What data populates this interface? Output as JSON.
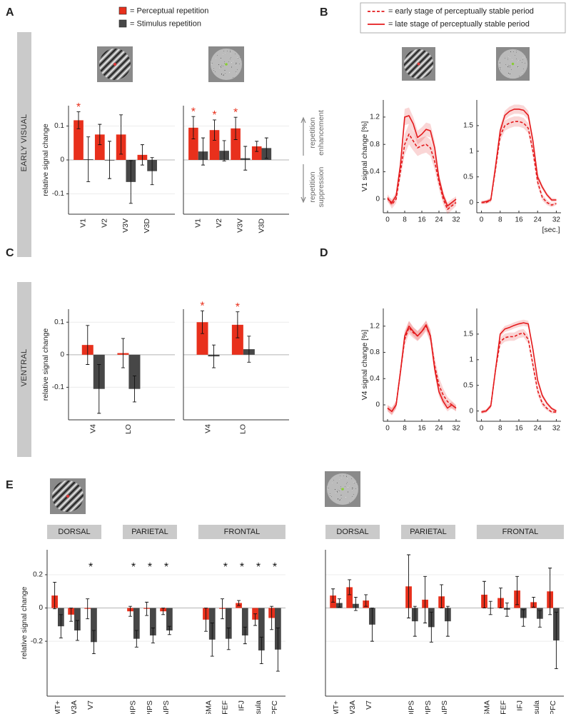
{
  "panels": [
    "A",
    "B",
    "C",
    "D",
    "E"
  ],
  "side_labels": [
    "EARLY VISUAL",
    "VENTRAL"
  ],
  "chart_data": [
    {
      "type": "bar",
      "ylabel": "relative signal change",
      "categories": [
        "V1",
        "V2",
        "V3V",
        "V3D"
      ],
      "ylim": [
        -0.16,
        0.16
      ],
      "yticks": [
        -0.1,
        0,
        0.1
      ],
      "grid": true,
      "series": [
        {
          "name": "= Perceptual repetition",
          "color": "#e8301c",
          "values": [
            0.117,
            0.075,
            0.075,
            0.015
          ],
          "errors": [
            0.025,
            0.03,
            0.058,
            0.03
          ]
        },
        {
          "name": "= Stimulus repetition",
          "color": "#474747",
          "values": [
            0.002,
            0.0,
            -0.065,
            -0.033
          ],
          "errors": [
            0.066,
            0.055,
            0.063,
            0.04
          ]
        }
      ],
      "significance": [
        "*",
        null,
        null,
        null
      ],
      "significance_color": "#e8301c"
    },
    {
      "type": "bar",
      "categories": [
        "V1",
        "V2",
        "V3V",
        "V3D"
      ],
      "ylim": [
        -0.16,
        0.16
      ],
      "yticks": [
        -0.1,
        0,
        0.1
      ],
      "grid": true,
      "ytick_labels": false,
      "series": [
        {
          "color": "#e8301c",
          "values": [
            0.095,
            0.088,
            0.093,
            0.04
          ],
          "errors": [
            0.033,
            0.03,
            0.033,
            0.015
          ]
        },
        {
          "color": "#474747",
          "values": [
            0.025,
            0.027,
            0.005,
            0.035
          ],
          "errors": [
            0.04,
            0.03,
            0.035,
            0.03
          ]
        }
      ],
      "significance": [
        "*",
        "*",
        "*",
        null
      ],
      "significance_color": "#e8301c",
      "annotations": [
        [
          "repetition",
          "enhancement"
        ],
        [
          "repetition",
          "suppression"
        ]
      ]
    },
    {
      "type": "line",
      "ylabel": "V1 signal change [%]",
      "x": [
        0,
        2,
        4,
        6,
        8,
        10,
        12,
        14,
        16,
        18,
        20,
        22,
        24,
        26,
        28,
        30,
        32
      ],
      "xlim": [
        -2,
        34
      ],
      "xticks": [
        0,
        8,
        16,
        24,
        32
      ],
      "ylim": [
        -0.2,
        1.45
      ],
      "yticks": [
        0,
        0.4,
        0.8,
        1.2
      ],
      "series": [
        {
          "name": "= early stage of perceptually stable period",
          "color": "#e41a1c",
          "line_style": "dashed",
          "values": [
            0.02,
            -0.08,
            0.0,
            0.4,
            0.8,
            0.95,
            0.85,
            0.75,
            0.78,
            0.8,
            0.75,
            0.55,
            0.25,
            0.0,
            -0.15,
            -0.1,
            -0.05
          ],
          "errors": [
            0.05,
            0.06,
            0.06,
            0.1,
            0.15,
            0.15,
            0.14,
            0.12,
            0.12,
            0.12,
            0.12,
            0.12,
            0.1,
            0.08,
            0.07,
            0.06,
            0.05
          ]
        },
        {
          "name": "= late stage of perceptually stable period",
          "color": "#e41a1c",
          "line_style": "solid",
          "values": [
            0.0,
            -0.05,
            0.05,
            0.5,
            1.2,
            1.22,
            1.1,
            0.9,
            0.95,
            1.02,
            1.0,
            0.75,
            0.3,
            0.05,
            -0.1,
            -0.05,
            0.0
          ],
          "errors": [
            0.04,
            0.05,
            0.05,
            0.08,
            0.12,
            0.12,
            0.1,
            0.1,
            0.1,
            0.1,
            0.1,
            0.1,
            0.08,
            0.06,
            0.05,
            0.05,
            0.04
          ]
        }
      ]
    },
    {
      "type": "line",
      "xlabel": "[sec.]",
      "x": [
        0,
        2,
        4,
        6,
        8,
        10,
        12,
        14,
        16,
        18,
        20,
        22,
        24,
        26,
        28,
        30,
        32
      ],
      "xlim": [
        -2,
        34
      ],
      "xticks": [
        0,
        8,
        16,
        24,
        32
      ],
      "ylim": [
        -0.2,
        2.0
      ],
      "yticks": [
        0,
        0.5,
        1,
        1.5
      ],
      "series": [
        {
          "color": "#e41a1c",
          "line_style": "dashed",
          "values": [
            0.0,
            0.0,
            0.05,
            0.65,
            1.3,
            1.5,
            1.55,
            1.58,
            1.58,
            1.55,
            1.45,
            1.0,
            0.4,
            0.1,
            0.0,
            -0.05,
            -0.02
          ],
          "errors": [
            0.03,
            0.03,
            0.04,
            0.08,
            0.1,
            0.1,
            0.1,
            0.1,
            0.1,
            0.1,
            0.1,
            0.1,
            0.08,
            0.06,
            0.05,
            0.04,
            0.03
          ]
        },
        {
          "color": "#e41a1c",
          "line_style": "solid",
          "values": [
            0.0,
            0.02,
            0.05,
            0.7,
            1.4,
            1.7,
            1.78,
            1.82,
            1.82,
            1.8,
            1.7,
            1.2,
            0.5,
            0.3,
            0.15,
            0.05,
            0.05
          ],
          "errors": [
            0.03,
            0.03,
            0.04,
            0.07,
            0.09,
            0.09,
            0.09,
            0.09,
            0.09,
            0.09,
            0.09,
            0.09,
            0.07,
            0.05,
            0.04,
            0.04,
            0.03
          ]
        }
      ]
    },
    {
      "type": "bar",
      "ylabel": "relative signal change",
      "categories": [
        "V4",
        "LO"
      ],
      "ylim": [
        -0.2,
        0.14
      ],
      "yticks": [
        -0.1,
        0,
        0.1
      ],
      "grid": true,
      "series": [
        {
          "color": "#e8301c",
          "values": [
            0.03,
            0.005
          ],
          "errors": [
            0.06,
            0.045
          ]
        },
        {
          "color": "#474747",
          "values": [
            -0.105,
            -0.105
          ],
          "errors": [
            0.075,
            0.04
          ]
        }
      ]
    },
    {
      "type": "bar",
      "categories": [
        "V4",
        "LO"
      ],
      "ylim": [
        -0.2,
        0.14
      ],
      "yticks": [
        -0.1,
        0,
        0.1
      ],
      "grid": true,
      "ytick_labels": false,
      "series": [
        {
          "color": "#e8301c",
          "values": [
            0.1,
            0.092
          ],
          "errors": [
            0.035,
            0.04
          ]
        },
        {
          "color": "#474747",
          "values": [
            -0.005,
            0.017
          ],
          "errors": [
            0.035,
            0.04
          ]
        }
      ],
      "significance": [
        "*",
        "*"
      ],
      "significance_color": "#e8301c"
    },
    {
      "type": "line",
      "ylabel": "V4 signal change [%]",
      "x": [
        0,
        2,
        4,
        6,
        8,
        10,
        12,
        14,
        16,
        18,
        20,
        22,
        24,
        26,
        28,
        30,
        32
      ],
      "xlim": [
        -2,
        34
      ],
      "xticks": [
        0,
        8,
        16,
        24,
        32
      ],
      "ylim": [
        -0.25,
        1.47
      ],
      "yticks": [
        0,
        0.4,
        0.8,
        1.2
      ],
      "series": [
        {
          "color": "#e41a1c",
          "line_style": "dashed",
          "values": [
            -0.05,
            -0.1,
            0.0,
            0.5,
            1.0,
            1.18,
            1.1,
            1.05,
            1.12,
            1.2,
            1.05,
            0.6,
            0.3,
            0.15,
            0.05,
            0.0,
            -0.05
          ],
          "errors": [
            0.05,
            0.06,
            0.06,
            0.08,
            0.1,
            0.1,
            0.08,
            0.08,
            0.08,
            0.08,
            0.1,
            0.12,
            0.12,
            0.1,
            0.07,
            0.06,
            0.05
          ]
        },
        {
          "color": "#e41a1c",
          "line_style": "solid",
          "values": [
            -0.05,
            -0.1,
            0.0,
            0.5,
            1.05,
            1.2,
            1.12,
            1.05,
            1.12,
            1.22,
            1.05,
            0.55,
            0.2,
            0.05,
            -0.05,
            0.0,
            -0.05
          ],
          "errors": [
            0.04,
            0.05,
            0.05,
            0.07,
            0.08,
            0.08,
            0.07,
            0.07,
            0.07,
            0.07,
            0.08,
            0.08,
            0.07,
            0.06,
            0.05,
            0.05,
            0.04
          ]
        }
      ]
    },
    {
      "type": "line",
      "x": [
        0,
        2,
        4,
        6,
        8,
        10,
        12,
        14,
        16,
        18,
        20,
        22,
        24,
        26,
        28,
        30,
        32
      ],
      "xlim": [
        -2,
        34
      ],
      "xticks": [
        0,
        8,
        16,
        24,
        32
      ],
      "ylim": [
        -0.2,
        2.0
      ],
      "yticks": [
        0,
        0.5,
        1,
        1.5
      ],
      "series": [
        {
          "color": "#e41a1c",
          "line_style": "dashed",
          "values": [
            -0.02,
            0.0,
            0.1,
            0.8,
            1.35,
            1.43,
            1.45,
            1.45,
            1.5,
            1.52,
            1.4,
            0.9,
            0.4,
            0.15,
            0.05,
            -0.02,
            -0.02
          ],
          "errors": [
            0.03,
            0.03,
            0.04,
            0.07,
            0.08,
            0.08,
            0.08,
            0.08,
            0.08,
            0.08,
            0.09,
            0.1,
            0.09,
            0.06,
            0.04,
            0.03,
            0.03
          ]
        },
        {
          "color": "#e41a1c",
          "line_style": "solid",
          "values": [
            -0.02,
            0.0,
            0.1,
            0.8,
            1.5,
            1.6,
            1.63,
            1.67,
            1.7,
            1.72,
            1.7,
            1.2,
            0.6,
            0.3,
            0.15,
            0.05,
            0.0
          ],
          "errors": [
            0.03,
            0.03,
            0.04,
            0.06,
            0.06,
            0.06,
            0.06,
            0.06,
            0.06,
            0.06,
            0.06,
            0.07,
            0.06,
            0.05,
            0.04,
            0.03,
            0.03
          ]
        }
      ]
    },
    {
      "type": "bar",
      "ylabel": "relative signal change",
      "categories": [
        "hMT+",
        "V3A",
        "V7",
        "POIPS",
        "PIPS",
        "AIPS",
        "SMA",
        "FEF",
        "IFJ",
        "Insula",
        "DLPFC"
      ],
      "group_labels": [
        "DORSAL",
        "PARIETAL",
        "FRONTAL"
      ],
      "group_sizes": [
        3,
        3,
        5
      ],
      "ylim": [
        -0.53,
        0.35
      ],
      "yticks": [
        -0.2,
        0,
        0.2
      ],
      "grid": true,
      "series": [
        {
          "color": "#e8301c",
          "values": [
            0.075,
            -0.04,
            -0.005,
            -0.02,
            -0.005,
            -0.02,
            -0.07,
            -0.005,
            0.03,
            -0.07,
            -0.06
          ],
          "errors": [
            0.08,
            0.04,
            0.06,
            0.03,
            0.04,
            0.02,
            0.07,
            0.06,
            0.015,
            0.035,
            0.07
          ]
        },
        {
          "color": "#474747",
          "values": [
            -0.11,
            -0.135,
            -0.205,
            -0.185,
            -0.165,
            -0.135,
            -0.19,
            -0.185,
            -0.165,
            -0.255,
            -0.25
          ],
          "errors": [
            0.07,
            0.06,
            0.07,
            0.05,
            0.045,
            0.025,
            0.1,
            0.065,
            0.05,
            0.08,
            0.13
          ]
        }
      ],
      "significance": [
        null,
        null,
        "*",
        "*",
        "*",
        "*",
        null,
        "*",
        "*",
        "*",
        "*"
      ],
      "significance_color": "#111111"
    },
    {
      "type": "bar",
      "categories": [
        "hMT+",
        "V3A",
        "V7",
        "POIPS",
        "PIPS",
        "AIPS",
        "SMA",
        "FEF",
        "IFJ",
        "Insula",
        "DLPFC"
      ],
      "group_labels": [
        "DORSAL",
        "PARIETAL",
        "FRONTAL"
      ],
      "group_sizes": [
        3,
        3,
        5
      ],
      "ylim": [
        -0.53,
        0.35
      ],
      "yticks": [
        -0.2,
        0,
        0.2
      ],
      "grid": true,
      "ytick_labels": false,
      "series": [
        {
          "color": "#e8301c",
          "values": [
            0.075,
            0.125,
            0.045,
            0.13,
            0.05,
            0.07,
            0.08,
            0.06,
            0.105,
            0.035,
            0.1
          ],
          "errors": [
            0.04,
            0.045,
            0.035,
            0.19,
            0.14,
            0.07,
            0.08,
            0.06,
            0.085,
            0.03,
            0.14
          ]
        },
        {
          "color": "#474747",
          "values": [
            0.03,
            0.025,
            -0.1,
            -0.08,
            -0.115,
            -0.08,
            0.0,
            -0.01,
            -0.06,
            -0.065,
            -0.195
          ],
          "errors": [
            0.025,
            0.04,
            0.1,
            0.09,
            0.09,
            0.09,
            0.04,
            0.04,
            0.05,
            0.05,
            0.17
          ]
        }
      ]
    }
  ]
}
